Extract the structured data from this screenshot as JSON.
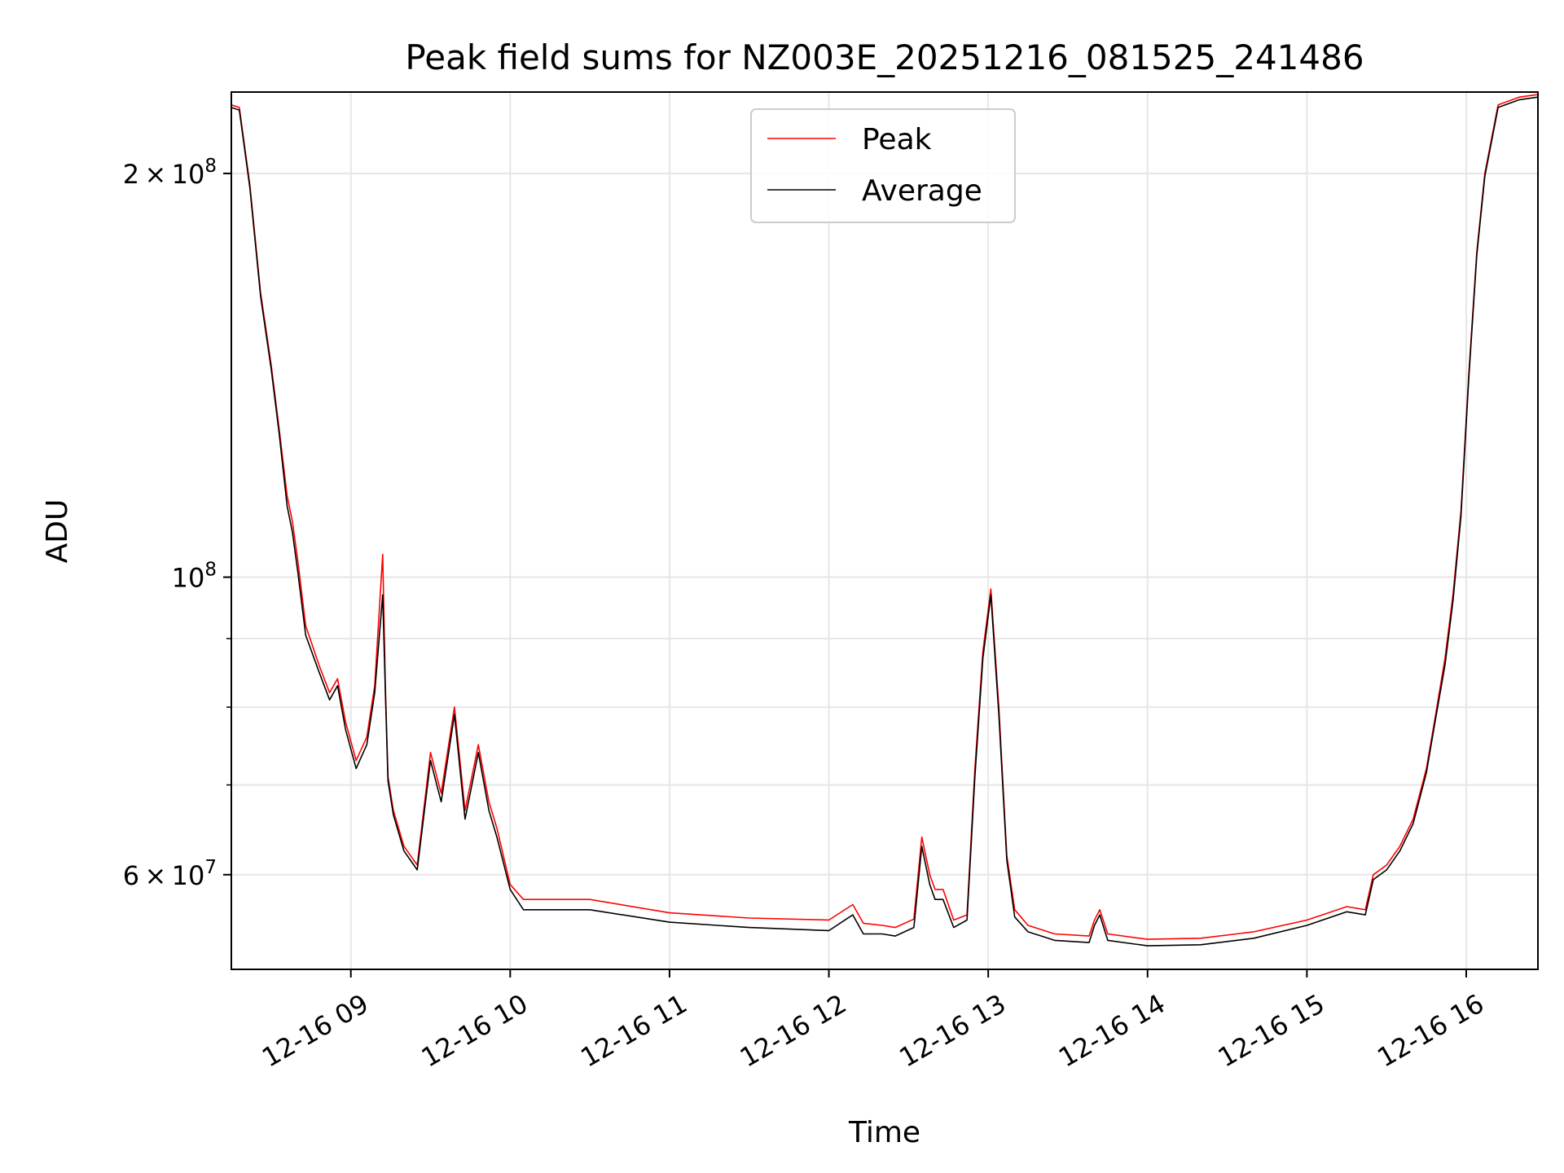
{
  "chart_data": {
    "type": "line",
    "title": "Peak field sums for NZ003E_20251216_081525_241486",
    "xlabel": "Time",
    "ylabel": "ADU",
    "yscale": "log",
    "grid": true,
    "legend_placement": "upper center",
    "x_ticks": [
      "12-16 09",
      "12-16 10",
      "12-16 11",
      "12-16 12",
      "12-16 13",
      "12-16 14",
      "12-16 15",
      "12-16 16"
    ],
    "y_tick_labels": [
      {
        "value": 60000000,
        "base": "6 × 10",
        "exp": "7"
      },
      {
        "value": 100000000,
        "base": "10",
        "exp": "8"
      },
      {
        "value": 200000000,
        "base": "2 × 10",
        "exp": "8"
      }
    ],
    "y_minor_ticks": [
      70000000,
      80000000,
      90000000
    ],
    "xlim": [
      "2025-12-16 08:15",
      "2025-12-16 16:27"
    ],
    "ylim": [
      51000000,
      230000000
    ],
    "colors": {
      "Peak": "#ff0000",
      "Average": "#000000"
    },
    "series": [
      {
        "name": "Peak",
        "x": [
          "2025-12-16 08:15",
          "2025-12-16 08:18",
          "2025-12-16 08:22",
          "2025-12-16 08:26",
          "2025-12-16 08:30",
          "2025-12-16 08:33",
          "2025-12-16 08:36",
          "2025-12-16 08:38",
          "2025-12-16 08:40",
          "2025-12-16 08:43",
          "2025-12-16 08:48",
          "2025-12-16 08:52",
          "2025-12-16 08:55",
          "2025-12-16 08:58",
          "2025-12-16 09:02",
          "2025-12-16 09:06",
          "2025-12-16 09:09",
          "2025-12-16 09:12",
          "2025-12-16 09:13",
          "2025-12-16 09:14",
          "2025-12-16 09:16",
          "2025-12-16 09:20",
          "2025-12-16 09:25",
          "2025-12-16 09:30",
          "2025-12-16 09:34",
          "2025-12-16 09:39",
          "2025-12-16 09:43",
          "2025-12-16 09:48",
          "2025-12-16 09:52",
          "2025-12-16 09:55",
          "2025-12-16 10:00",
          "2025-12-16 10:05",
          "2025-12-16 10:30",
          "2025-12-16 11:00",
          "2025-12-16 11:30",
          "2025-12-16 12:00",
          "2025-12-16 12:09",
          "2025-12-16 12:13",
          "2025-12-16 12:20",
          "2025-12-16 12:25",
          "2025-12-16 12:32",
          "2025-12-16 12:35",
          "2025-12-16 12:38",
          "2025-12-16 12:40",
          "2025-12-16 12:43",
          "2025-12-16 12:47",
          "2025-12-16 12:52",
          "2025-12-16 12:55",
          "2025-12-16 12:58",
          "2025-12-16 13:01",
          "2025-12-16 13:04",
          "2025-12-16 13:07",
          "2025-12-16 13:10",
          "2025-12-16 13:15",
          "2025-12-16 13:25",
          "2025-12-16 13:38",
          "2025-12-16 13:40",
          "2025-12-16 13:42",
          "2025-12-16 13:45",
          "2025-12-16 14:00",
          "2025-12-16 14:20",
          "2025-12-16 14:40",
          "2025-12-16 15:00",
          "2025-12-16 15:15",
          "2025-12-16 15:22",
          "2025-12-16 15:25",
          "2025-12-16 15:30",
          "2025-12-16 15:35",
          "2025-12-16 15:40",
          "2025-12-16 15:45",
          "2025-12-16 15:48",
          "2025-12-16 15:52",
          "2025-12-16 15:55",
          "2025-12-16 15:58",
          "2025-12-16 16:01",
          "2025-12-16 16:04",
          "2025-12-16 16:07",
          "2025-12-16 16:12",
          "2025-12-16 16:20",
          "2025-12-16 16:27"
        ],
        "y": [
          225000000,
          224000000,
          196000000,
          163000000,
          144000000,
          129000000,
          115000000,
          110000000,
          103000000,
          92000000,
          86000000,
          82000000,
          84000000,
          78000000,
          73000000,
          76000000,
          83000000,
          104000000,
          83000000,
          71000000,
          67000000,
          63000000,
          61000000,
          74000000,
          69000000,
          80000000,
          67000000,
          75000000,
          68000000,
          65000000,
          59000000,
          57500000,
          57500000,
          56200000,
          55700000,
          55500000,
          57000000,
          55200000,
          55000000,
          54800000,
          55600000,
          64000000,
          60000000,
          58500000,
          58500000,
          55500000,
          56000000,
          72000000,
          88000000,
          98000000,
          80000000,
          62000000,
          56500000,
          55000000,
          54200000,
          54000000,
          55500000,
          56500000,
          54200000,
          53700000,
          53800000,
          54400000,
          55500000,
          56800000,
          56500000,
          60000000,
          61000000,
          63000000,
          66000000,
          72000000,
          78000000,
          87000000,
          97000000,
          112000000,
          142000000,
          175000000,
          200000000,
          225000000,
          228000000,
          229000000
        ]
      },
      {
        "name": "Average",
        "x": [
          "2025-12-16 08:15",
          "2025-12-16 08:18",
          "2025-12-16 08:22",
          "2025-12-16 08:26",
          "2025-12-16 08:30",
          "2025-12-16 08:33",
          "2025-12-16 08:36",
          "2025-12-16 08:38",
          "2025-12-16 08:40",
          "2025-12-16 08:43",
          "2025-12-16 08:48",
          "2025-12-16 08:52",
          "2025-12-16 08:55",
          "2025-12-16 08:58",
          "2025-12-16 09:02",
          "2025-12-16 09:06",
          "2025-12-16 09:09",
          "2025-12-16 09:12",
          "2025-12-16 09:13",
          "2025-12-16 09:14",
          "2025-12-16 09:16",
          "2025-12-16 09:20",
          "2025-12-16 09:25",
          "2025-12-16 09:30",
          "2025-12-16 09:34",
          "2025-12-16 09:39",
          "2025-12-16 09:43",
          "2025-12-16 09:48",
          "2025-12-16 09:52",
          "2025-12-16 09:55",
          "2025-12-16 10:00",
          "2025-12-16 10:05",
          "2025-12-16 10:30",
          "2025-12-16 11:00",
          "2025-12-16 11:30",
          "2025-12-16 12:00",
          "2025-12-16 12:09",
          "2025-12-16 12:13",
          "2025-12-16 12:20",
          "2025-12-16 12:25",
          "2025-12-16 12:32",
          "2025-12-16 12:35",
          "2025-12-16 12:38",
          "2025-12-16 12:40",
          "2025-12-16 12:43",
          "2025-12-16 12:47",
          "2025-12-16 12:52",
          "2025-12-16 12:55",
          "2025-12-16 12:58",
          "2025-12-16 13:01",
          "2025-12-16 13:04",
          "2025-12-16 13:07",
          "2025-12-16 13:10",
          "2025-12-16 13:15",
          "2025-12-16 13:25",
          "2025-12-16 13:38",
          "2025-12-16 13:40",
          "2025-12-16 13:42",
          "2025-12-16 13:45",
          "2025-12-16 14:00",
          "2025-12-16 14:20",
          "2025-12-16 14:40",
          "2025-12-16 15:00",
          "2025-12-16 15:15",
          "2025-12-16 15:22",
          "2025-12-16 15:25",
          "2025-12-16 15:30",
          "2025-12-16 15:35",
          "2025-12-16 15:40",
          "2025-12-16 15:45",
          "2025-12-16 15:48",
          "2025-12-16 15:52",
          "2025-12-16 15:55",
          "2025-12-16 15:58",
          "2025-12-16 16:01",
          "2025-12-16 16:04",
          "2025-12-16 16:07",
          "2025-12-16 16:12",
          "2025-12-16 16:20",
          "2025-12-16 16:27"
        ],
        "y": [
          224000000,
          223000000,
          195000000,
          162000000,
          143000000,
          128000000,
          113000000,
          108000000,
          101000000,
          90500000,
          85000000,
          81000000,
          83000000,
          77000000,
          72000000,
          75000000,
          82000000,
          97000000,
          82000000,
          70500000,
          66500000,
          62500000,
          60500000,
          73000000,
          68000000,
          79000000,
          66000000,
          74000000,
          67000000,
          64000000,
          58500000,
          56500000,
          56500000,
          55300000,
          54800000,
          54500000,
          56000000,
          54200000,
          54200000,
          54000000,
          54800000,
          63000000,
          59000000,
          57500000,
          57500000,
          54800000,
          55500000,
          71000000,
          87000000,
          97000000,
          79000000,
          61500000,
          55800000,
          54400000,
          53600000,
          53400000,
          55000000,
          56000000,
          53600000,
          53100000,
          53200000,
          53800000,
          55000000,
          56300000,
          56000000,
          59500000,
          60500000,
          62500000,
          65500000,
          71500000,
          77500000,
          86000000,
          96000000,
          111000000,
          141000000,
          174000000,
          199000000,
          224000000,
          227000000,
          228000000
        ]
      }
    ]
  }
}
